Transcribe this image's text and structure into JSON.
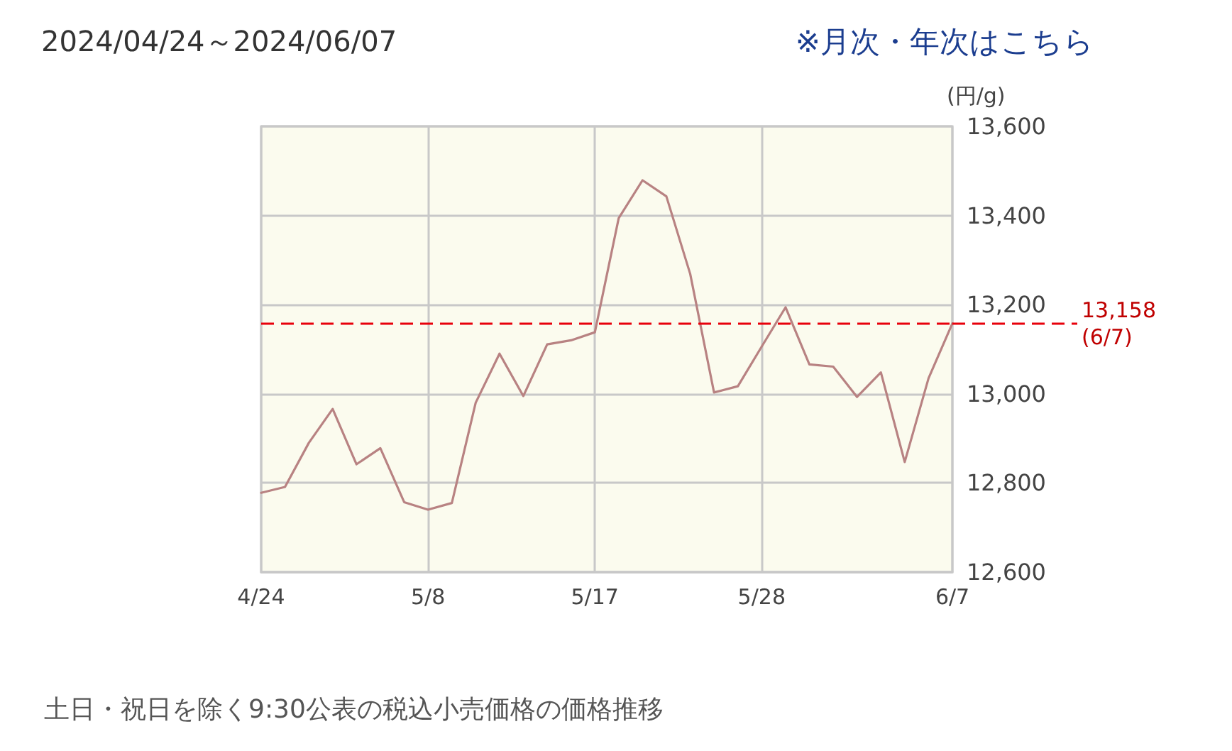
{
  "chart_data": {
    "type": "line",
    "title": "2024/04/24～2024/06/07",
    "ylabel": "(円/g)",
    "annotations": [
      "※月次・年次はこちら",
      "土日・祝日を除く9:30公表の税込小売価格の価格推移"
    ],
    "categories": [
      "4/24",
      null,
      null,
      null,
      null,
      null,
      null,
      "5/8",
      null,
      null,
      null,
      null,
      null,
      null,
      "5/17",
      null,
      null,
      null,
      null,
      null,
      null,
      "5/28",
      null,
      null,
      null,
      null,
      null,
      null,
      null,
      "6/7"
    ],
    "series": [
      {
        "color": "#b88282",
        "values": [
          12778,
          12791,
          12890,
          12966,
          12842,
          12878,
          12757,
          12740,
          12755,
          12980,
          13090,
          12995,
          13111,
          13120,
          13138,
          13394,
          13479,
          13443,
          13269,
          13003,
          13017,
          13106,
          13194,
          13066,
          13061,
          12993,
          13048,
          12847,
          13035,
          13158
        ]
      }
    ],
    "ylim": [
      12600,
      13600
    ],
    "yticks": [
      {
        "value": 12600,
        "label": "12,600"
      },
      {
        "value": 12800,
        "label": "12,800"
      },
      {
        "value": 13000,
        "label": "13,000"
      },
      {
        "value": 13200,
        "label": "13,200"
      },
      {
        "value": 13400,
        "label": "13,400"
      },
      {
        "value": 13600,
        "label": "13,600"
      }
    ],
    "grid": true,
    "marker": "none",
    "line_style": "solid",
    "ref_lines": [
      {
        "axis": "y",
        "value": 13158,
        "label": "13,158\n(6/7)",
        "color": "#e8000b",
        "line_style": "dashed"
      }
    ]
  }
}
